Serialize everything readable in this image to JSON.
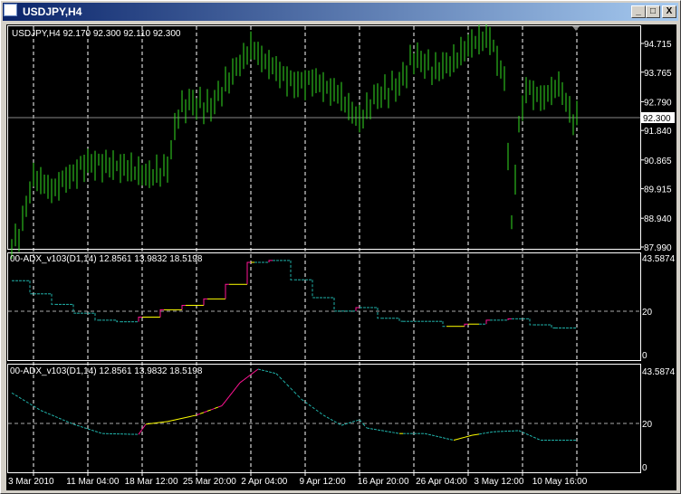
{
  "window": {
    "title": "USDJPY,H4",
    "minimize": "_",
    "maximize": "□",
    "close": "X"
  },
  "main": {
    "header": "USDJPY,H4  92.170 92.300 92.110 92.300",
    "current_price": "92.300",
    "price_labels": [
      "94.715",
      "93.765",
      "92.790",
      "91.840",
      "90.865",
      "89.915",
      "88.940",
      "87.990"
    ],
    "price_range": [
      87.99,
      94.715
    ],
    "close_path": [
      [
        0,
        88.1
      ],
      [
        2,
        88.35
      ],
      [
        6,
        90.33
      ],
      [
        11,
        89.87
      ],
      [
        21,
        90.78
      ],
      [
        31,
        90.63
      ],
      [
        38,
        90.33
      ],
      [
        43,
        90.6
      ],
      [
        46,
        92.46
      ],
      [
        49,
        92.76
      ],
      [
        55,
        92.61
      ],
      [
        59,
        93.37
      ],
      [
        66,
        94.58
      ],
      [
        70,
        94.13
      ],
      [
        78,
        93.37
      ],
      [
        83,
        93.5
      ],
      [
        90,
        93.06
      ],
      [
        96,
        92.15
      ],
      [
        100,
        92.9
      ],
      [
        107,
        93.37
      ],
      [
        111,
        94.28
      ],
      [
        117,
        93.82
      ],
      [
        122,
        94.13
      ],
      [
        127,
        94.74
      ],
      [
        132,
        94.9
      ],
      [
        136,
        93.5
      ],
      [
        138,
        88.66
      ],
      [
        140,
        92.0
      ],
      [
        142,
        93.2
      ],
      [
        147,
        92.9
      ],
      [
        151,
        93.37
      ],
      [
        155,
        92.15
      ],
      [
        156,
        92.3
      ]
    ],
    "bar_color": "#33dd22"
  },
  "indicators": [
    {
      "header": "00-ADX_v103(D1,14) 12.8561 13.9832 18.5198",
      "style": "step",
      "max_label": "43.5874",
      "mid_label": "20",
      "min_label": "0"
    },
    {
      "header": "00-ADX_v103(D1,14) 12.8561 13.9832 18.5198",
      "style": "line",
      "max_label": "43.5874",
      "mid_label": "20",
      "min_label": "0"
    }
  ],
  "adx_values": [
    [
      0,
      33.3
    ],
    [
      8,
      25.4
    ],
    [
      17,
      19.2
    ],
    [
      25,
      15
    ],
    [
      35,
      14.6
    ],
    [
      37,
      19.2
    ],
    [
      43,
      20.4
    ],
    [
      51,
      23.3
    ],
    [
      58,
      27.5
    ],
    [
      63,
      37.9
    ],
    [
      68,
      44
    ],
    [
      73,
      42
    ],
    [
      80,
      30.4
    ],
    [
      86,
      23.3
    ],
    [
      91,
      18.7
    ],
    [
      96,
      21.2
    ],
    [
      98,
      17.5
    ],
    [
      107,
      15
    ],
    [
      114,
      15
    ],
    [
      122,
      12
    ],
    [
      127,
      14.2
    ],
    [
      133,
      15.8
    ],
    [
      140,
      16.3
    ],
    [
      146,
      12
    ],
    [
      155,
      12
    ]
  ],
  "adx_colors": {
    "falling": "#20b2aa",
    "rising": "#ff1493",
    "flat": "#ffff00"
  },
  "time_labels": [
    "3 Mar 2010",
    "11 Mar 04:00",
    "18 Mar 12:00",
    "25 Mar 20:00",
    "2 Apr 04:00",
    "9 Apr 12:00",
    "16 Apr 20:00",
    "26 Apr 04:00",
    "3 May 12:00",
    "10 May 16:00"
  ]
}
